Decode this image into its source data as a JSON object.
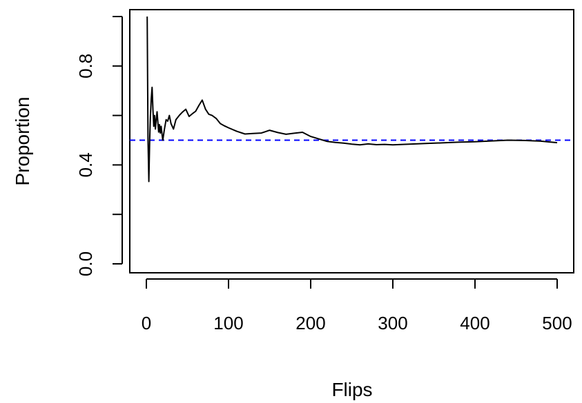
{
  "chart_data": {
    "type": "line",
    "title": "",
    "xlabel": "Flips",
    "ylabel": "Proportion",
    "xlim": [
      0,
      500
    ],
    "ylim": [
      0,
      1
    ],
    "x_ticks": [
      0,
      100,
      200,
      300,
      400,
      500
    ],
    "x_tick_labels": [
      "0",
      "100",
      "200",
      "300",
      "400",
      "500"
    ],
    "y_ticks": [
      0.0,
      0.2,
      0.4,
      0.6,
      0.8,
      1.0
    ],
    "y_tick_labels": [
      "0.0",
      "",
      "0.4",
      "",
      "0.8",
      ""
    ],
    "grid": false,
    "legend": "none",
    "reference_line": {
      "y": 0.5,
      "style": "dashed",
      "color": "#0000ff"
    },
    "series": [
      {
        "color": "#000000",
        "x": [
          1,
          2,
          3,
          4,
          5,
          6,
          7,
          8,
          9,
          10,
          11,
          12,
          13,
          14,
          15,
          16,
          17,
          18,
          19,
          20,
          22,
          24,
          26,
          28,
          30,
          33,
          36,
          40,
          44,
          48,
          52,
          56,
          60,
          64,
          68,
          72,
          76,
          80,
          85,
          90,
          95,
          100,
          110,
          120,
          130,
          140,
          150,
          160,
          170,
          180,
          190,
          200,
          210,
          220,
          230,
          240,
          250,
          260,
          270,
          280,
          290,
          300,
          320,
          340,
          360,
          380,
          400,
          420,
          440,
          460,
          480,
          500
        ],
        "y": [
          1.0,
          0.5,
          0.333,
          0.5,
          0.6,
          0.667,
          0.714,
          0.625,
          0.556,
          0.6,
          0.545,
          0.583,
          0.615,
          0.571,
          0.533,
          0.563,
          0.529,
          0.556,
          0.526,
          0.5,
          0.545,
          0.583,
          0.577,
          0.6,
          0.567,
          0.545,
          0.583,
          0.6,
          0.614,
          0.625,
          0.596,
          0.607,
          0.617,
          0.641,
          0.662,
          0.625,
          0.605,
          0.6,
          0.588,
          0.567,
          0.558,
          0.55,
          0.536,
          0.525,
          0.527,
          0.529,
          0.54,
          0.531,
          0.524,
          0.528,
          0.532,
          0.515,
          0.505,
          0.495,
          0.491,
          0.488,
          0.484,
          0.481,
          0.485,
          0.482,
          0.483,
          0.481,
          0.484,
          0.487,
          0.489,
          0.492,
          0.494,
          0.497,
          0.5,
          0.499,
          0.496,
          0.49
        ]
      }
    ]
  }
}
